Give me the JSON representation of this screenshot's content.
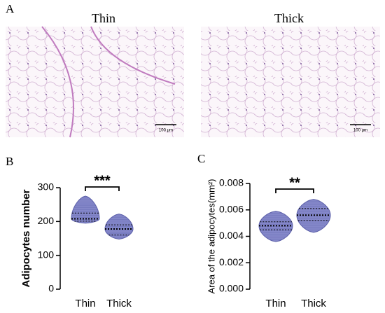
{
  "panels": {
    "a_label": "A",
    "b_label": "B",
    "c_label": "C",
    "image_titles": [
      "Thin",
      "Thick"
    ],
    "scale_bars": [
      "100 µm",
      "100 µm"
    ]
  },
  "chart_data": [
    {
      "type": "violin",
      "ylabel": "Adipocytes number",
      "significance": "***",
      "color": "#8487c9",
      "categories": [
        "Thin",
        "Thick"
      ],
      "stats": [
        {
          "min": 195,
          "q1": 201,
          "median": 208,
          "q3": 225,
          "max": 275
        },
        {
          "min": 148,
          "q1": 160,
          "median": 178,
          "q3": 190,
          "max": 222
        }
      ],
      "ylim": [
        0,
        300
      ],
      "yticks": [
        0,
        100,
        200,
        300
      ]
    },
    {
      "type": "violin",
      "ylabel": "Area of the adipocytes(mm²)",
      "significance": "**",
      "color": "#8487c9",
      "categories": [
        "Thin",
        "Thick"
      ],
      "stats": [
        {
          "min": 0.0036,
          "q1": 0.0045,
          "median": 0.0048,
          "q3": 0.0051,
          "max": 0.0059
        },
        {
          "min": 0.0043,
          "q1": 0.0052,
          "median": 0.0056,
          "q3": 0.0061,
          "max": 0.0068
        }
      ],
      "ylim": [
        0,
        0.008
      ],
      "yticks": [
        {
          "value": 0,
          "label": "0.000"
        },
        {
          "value": 0.002,
          "label": "0.002"
        },
        {
          "value": 0.004,
          "label": "0.004"
        },
        {
          "value": 0.006,
          "label": "0.006"
        },
        {
          "value": 0.008,
          "label": "0.008"
        }
      ]
    }
  ]
}
